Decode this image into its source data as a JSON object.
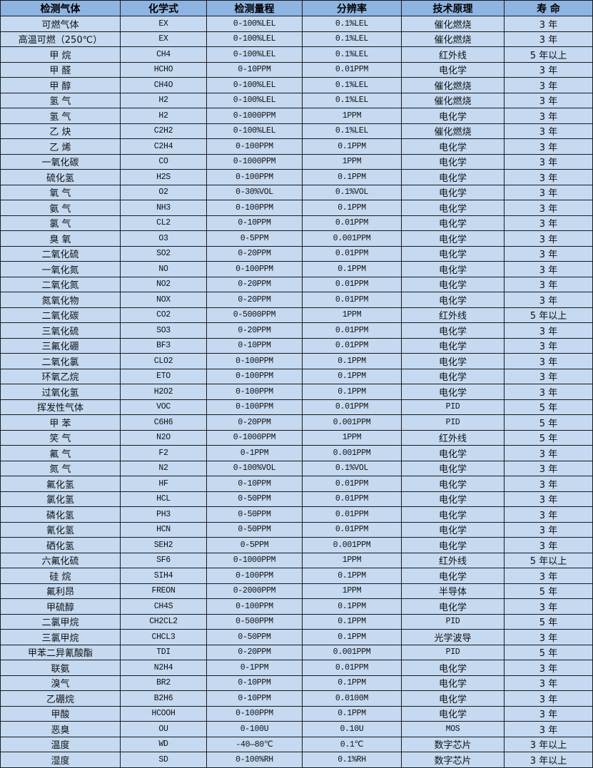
{
  "colors": {
    "header_bg": "#8db4e2",
    "row_bg": "#c5d9f1",
    "border": "#1a1a1a"
  },
  "headers": [
    "检测气体",
    "化学式",
    "检测量程",
    "分辨率",
    "技术原理",
    "寿 命"
  ],
  "rows": [
    [
      "可燃气体",
      "EX",
      "0-100%LEL",
      "0.1%LEL",
      "催化燃烧",
      "3 年"
    ],
    [
      "高温可燃（250℃）",
      "EX",
      "0-100%LEL",
      "0.1%LEL",
      "催化燃烧",
      "3 年"
    ],
    [
      "甲 烷",
      "CH4",
      "0-100%LEL",
      "0.1%LEL",
      "红外线",
      "5 年以上"
    ],
    [
      "甲 醛",
      "HCHO",
      "0-10PPM",
      "0.01PPM",
      "电化学",
      "3 年"
    ],
    [
      "甲 醇",
      "CH4O",
      "0-100%LEL",
      "0.1%LEL",
      "催化燃烧",
      "3 年"
    ],
    [
      "氢 气",
      "H2",
      "0-100%LEL",
      "0.1%LEL",
      "催化燃烧",
      "3 年"
    ],
    [
      "氢 气",
      "H2",
      "0-1000PPM",
      "1PPM",
      "电化学",
      "3 年"
    ],
    [
      "乙 炔",
      "C2H2",
      "0-100%LEL",
      "0.1%LEL",
      "催化燃烧",
      "3 年"
    ],
    [
      "乙 烯",
      "C2H4",
      "0-100PPM",
      "0.1PPM",
      "电化学",
      "3 年"
    ],
    [
      "一氧化碳",
      "CO",
      "0-1000PPM",
      "1PPM",
      "电化学",
      "3 年"
    ],
    [
      "硫化氢",
      "H2S",
      "0-100PPM",
      "0.1PPM",
      "电化学",
      "3 年"
    ],
    [
      "氧 气",
      "O2",
      "0-30%VOL",
      "0.1%VOL",
      "电化学",
      "3 年"
    ],
    [
      "氨 气",
      "NH3",
      "0-100PPM",
      "0.1PPM",
      "电化学",
      "3 年"
    ],
    [
      "氯 气",
      "CL2",
      "0-10PPM",
      "0.01PPM",
      "电化学",
      "3 年"
    ],
    [
      "臭 氧",
      "O3",
      "0-5PPM",
      "0.001PPM",
      "电化学",
      "3 年"
    ],
    [
      "二氧化硫",
      "SO2",
      "0-20PPM",
      "0.01PPM",
      "电化学",
      "3 年"
    ],
    [
      "一氧化氮",
      "NO",
      "0-100PPM",
      "0.1PPM",
      "电化学",
      "3 年"
    ],
    [
      "二氧化氮",
      "NO2",
      "0-20PPM",
      "0.01PPM",
      "电化学",
      "3 年"
    ],
    [
      "氮氧化物",
      "NOX",
      "0-20PPM",
      "0.01PPM",
      "电化学",
      "3 年"
    ],
    [
      "二氧化碳",
      "CO2",
      "0-5000PPM",
      "1PPM",
      "红外线",
      "5 年以上"
    ],
    [
      "三氧化硫",
      "SO3",
      "0-20PPM",
      "0.01PPM",
      "电化学",
      "3 年"
    ],
    [
      "三氟化硼",
      "BF3",
      "0-10PPM",
      "0.01PPM",
      "电化学",
      "3 年"
    ],
    [
      "二氧化氯",
      "CLO2",
      "0-100PPM",
      "0.1PPM",
      "电化学",
      "3 年"
    ],
    [
      "环氧乙烷",
      "ETO",
      "0-100PPM",
      "0.1PPM",
      "电化学",
      "3 年"
    ],
    [
      "过氧化氢",
      "H2O2",
      "0-100PPM",
      "0.1PPM",
      "电化学",
      "3 年"
    ],
    [
      "挥发性气体",
      "VOC",
      "0-100PPM",
      "0.01PPM",
      "PID",
      "5 年"
    ],
    [
      "甲 苯",
      "C6H6",
      "0-20PPM",
      "0.001PPM",
      "PID",
      "5 年"
    ],
    [
      "笑 气",
      "N2O",
      "0-1000PPM",
      "1PPM",
      "红外线",
      "5 年"
    ],
    [
      "氟 气",
      "F2",
      "0-1PPM",
      "0.001PPM",
      "电化学",
      "3 年"
    ],
    [
      "氮 气",
      "N2",
      "0-100%VOL",
      "0.1%VOL",
      "电化学",
      "3 年"
    ],
    [
      "氟化氢",
      "HF",
      "0-10PPM",
      "0.01PPM",
      "电化学",
      "3 年"
    ],
    [
      "氯化氢",
      "HCL",
      "0-50PPM",
      "0.01PPM",
      "电化学",
      "3 年"
    ],
    [
      "磷化氢",
      "PH3",
      "0-50PPM",
      "0.01PPM",
      "电化学",
      "3 年"
    ],
    [
      "氰化氢",
      "HCN",
      "0-50PPM",
      "0.01PPM",
      "电化学",
      "3 年"
    ],
    [
      "硒化氢",
      "SEH2",
      "0-5PPM",
      "0.001PPM",
      "电化学",
      "3 年"
    ],
    [
      "六氟化硫",
      "SF6",
      "0-1000PPM",
      "1PPM",
      "红外线",
      "5 年以上"
    ],
    [
      "硅 烷",
      "SIH4",
      "0-100PPM",
      "0.1PPM",
      "电化学",
      "3 年"
    ],
    [
      "氟利昂",
      "FREON",
      "0-2000PPM",
      "1PPM",
      "半导体",
      "5 年"
    ],
    [
      "甲硫醇",
      "CH4S",
      "0-100PPM",
      "0.1PPM",
      "电化学",
      "3 年"
    ],
    [
      "二氯甲烷",
      "CH2CL2",
      "0-500PPM",
      "0.1PPM",
      "PID",
      "5 年"
    ],
    [
      "三氯甲烷",
      "CHCL3",
      "0-50PPM",
      "0.1PPM",
      "光学波导",
      "3 年"
    ],
    [
      "甲苯二异氰酸酯",
      "TDI",
      "0-20PPM",
      "0.001PPM",
      "PID",
      "5 年"
    ],
    [
      "联氨",
      "N2H4",
      "0-1PPM",
      "0.01PPM",
      "电化学",
      "3 年"
    ],
    [
      "溴气",
      "BR2",
      "0-10PPM",
      "0.1PPM",
      "电化学",
      "3 年"
    ],
    [
      "乙硼烷",
      "B2H6",
      "0-10PPM",
      "0.0100M",
      "电化学",
      "3 年"
    ],
    [
      "甲酸",
      "HCOOH",
      "0-100PPM",
      "0.1PPM",
      "电化学",
      "3 年"
    ],
    [
      "恶臭",
      "OU",
      "0-100U",
      "0.10U",
      "MOS",
      "3 年"
    ],
    [
      "温度",
      "WD",
      "-40—80℃",
      "0.1℃",
      "数字芯片",
      "3 年以上"
    ],
    [
      "湿度",
      "SD",
      "0-100%RH",
      "0.1%RH",
      "数字芯片",
      "3 年以上"
    ]
  ]
}
